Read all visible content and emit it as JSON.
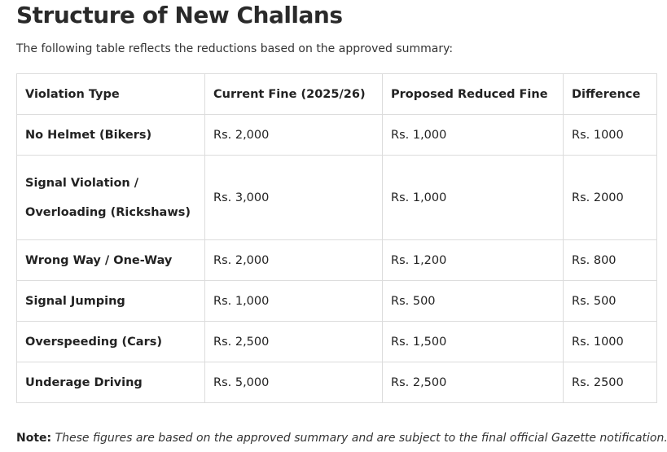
{
  "title": "Structure of New Challans",
  "intro": "The following table reflects the reductions based on the approved summary:",
  "table": {
    "headers": [
      "Violation Type",
      "Current Fine (2025/26)",
      "Proposed Reduced Fine",
      "Difference"
    ],
    "rows": [
      {
        "violation": [
          "No Helmet (Bikers)"
        ],
        "current": "Rs. 2,000",
        "proposed": "Rs. 1,000",
        "difference": "Rs. 1000"
      },
      {
        "violation": [
          "Signal Violation /",
          "Overloading (Rickshaws)"
        ],
        "current": "Rs. 3,000",
        "proposed": "Rs. 1,000",
        "difference": "Rs. 2000"
      },
      {
        "violation": [
          "Wrong Way / One-Way"
        ],
        "current": "Rs. 2,000",
        "proposed": "Rs. 1,200",
        "difference": "Rs. 800"
      },
      {
        "violation": [
          "Signal Jumping"
        ],
        "current": "Rs. 1,000",
        "proposed": "Rs. 500",
        "difference": "Rs. 500"
      },
      {
        "violation": [
          "Overspeeding (Cars)"
        ],
        "current": "Rs. 2,500",
        "proposed": "Rs. 1,500",
        "difference": "Rs. 1000"
      },
      {
        "violation": [
          "Underage Driving"
        ],
        "current": "Rs. 5,000",
        "proposed": "Rs. 2,500",
        "difference": "Rs. 2500"
      }
    ]
  },
  "note": {
    "label": "Note:",
    "text": "These figures are based on the approved summary and are subject to the final official Gazette notification."
  }
}
